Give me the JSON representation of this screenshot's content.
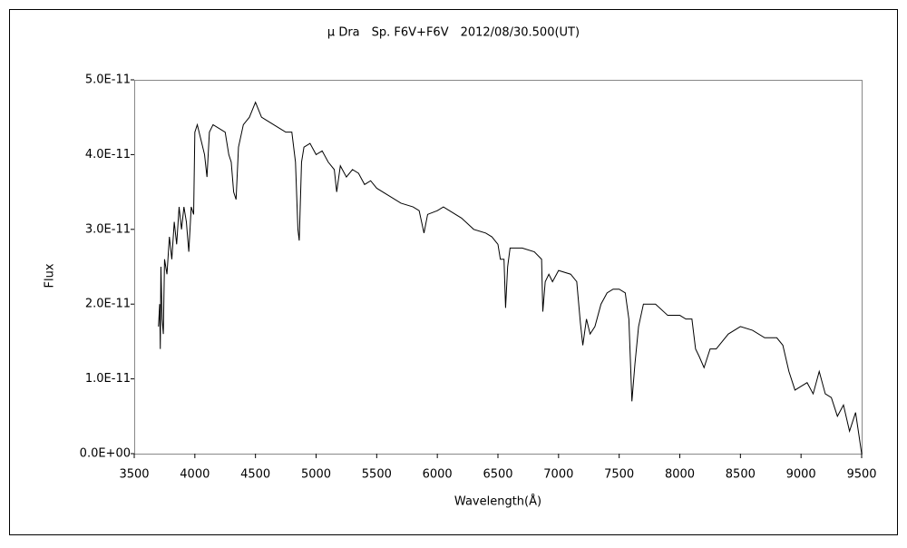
{
  "chart_data": {
    "type": "line",
    "title": "μ Dra　Sp. F6V+F6V　2012/08/30.500(UT)",
    "xlabel": "Wavelength(Å)",
    "ylabel": "Flux",
    "color": "#000000",
    "grid": false,
    "xlim": [
      3500,
      9500
    ],
    "xticks": [
      3500,
      4000,
      4500,
      5000,
      5500,
      6000,
      6500,
      7000,
      7500,
      8000,
      8500,
      9000,
      9500
    ],
    "ylim": [
      0,
      5e-11
    ],
    "yticks": [
      {
        "value": 0,
        "label": "0.0E+00"
      },
      {
        "value": 1e-11,
        "label": "1.0E-11"
      },
      {
        "value": 2e-11,
        "label": "2.0E-11"
      },
      {
        "value": 3e-11,
        "label": "3.0E-11"
      },
      {
        "value": 4e-11,
        "label": "4.0E-11"
      },
      {
        "value": 5e-11,
        "label": "5.0E-11"
      }
    ],
    "x": [
      3700,
      3710,
      3715,
      3720,
      3730,
      3740,
      3750,
      3770,
      3790,
      3810,
      3830,
      3850,
      3870,
      3890,
      3910,
      3930,
      3950,
      3970,
      3990,
      4000,
      4020,
      4050,
      4080,
      4100,
      4120,
      4150,
      4200,
      4250,
      4280,
      4300,
      4320,
      4340,
      4360,
      4400,
      4450,
      4500,
      4550,
      4600,
      4650,
      4700,
      4750,
      4800,
      4830,
      4850,
      4861,
      4880,
      4900,
      4950,
      5000,
      5050,
      5100,
      5150,
      5170,
      5200,
      5250,
      5300,
      5350,
      5400,
      5450,
      5500,
      5600,
      5700,
      5800,
      5850,
      5890,
      5920,
      6000,
      6050,
      6100,
      6200,
      6300,
      6400,
      6450,
      6500,
      6520,
      6550,
      6563,
      6580,
      6600,
      6700,
      6800,
      6860,
      6870,
      6890,
      6920,
      6950,
      7000,
      7100,
      7150,
      7180,
      7200,
      7230,
      7260,
      7300,
      7350,
      7400,
      7450,
      7500,
      7550,
      7580,
      7605,
      7630,
      7660,
      7700,
      7800,
      7900,
      8000,
      8050,
      8100,
      8130,
      8160,
      8200,
      8250,
      8300,
      8400,
      8500,
      8600,
      8700,
      8800,
      8850,
      8900,
      8950,
      9000,
      9050,
      9100,
      9150,
      9200,
      9250,
      9300,
      9350,
      9400,
      9450,
      9500
    ],
    "values": [
      1.7e-11,
      2e-11,
      1.4e-11,
      2.5e-11,
      1.8e-11,
      1.6e-11,
      2.6e-11,
      2.4e-11,
      2.9e-11,
      2.6e-11,
      3.1e-11,
      2.8e-11,
      3.3e-11,
      3e-11,
      3.3e-11,
      3.1e-11,
      2.7e-11,
      3.3e-11,
      3.2e-11,
      4.3e-11,
      4.4e-11,
      4.2e-11,
      4e-11,
      3.7e-11,
      4.3e-11,
      4.4e-11,
      4.35e-11,
      4.3e-11,
      4e-11,
      3.9e-11,
      3.5e-11,
      3.4e-11,
      4.1e-11,
      4.4e-11,
      4.5e-11,
      4.7e-11,
      4.5e-11,
      4.45e-11,
      4.4e-11,
      4.35e-11,
      4.3e-11,
      4.3e-11,
      3.9e-11,
      3e-11,
      2.85e-11,
      3.9e-11,
      4.1e-11,
      4.15e-11,
      4e-11,
      4.05e-11,
      3.9e-11,
      3.8e-11,
      3.5e-11,
      3.85e-11,
      3.7e-11,
      3.8e-11,
      3.75e-11,
      3.6e-11,
      3.65e-11,
      3.55e-11,
      3.45e-11,
      3.35e-11,
      3.3e-11,
      3.25e-11,
      2.95e-11,
      3.2e-11,
      3.25e-11,
      3.3e-11,
      3.25e-11,
      3.15e-11,
      3e-11,
      2.95e-11,
      2.9e-11,
      2.8e-11,
      2.6e-11,
      2.6e-11,
      1.95e-11,
      2.5e-11,
      2.75e-11,
      2.75e-11,
      2.7e-11,
      2.6e-11,
      1.9e-11,
      2.3e-11,
      2.4e-11,
      2.3e-11,
      2.45e-11,
      2.4e-11,
      2.3e-11,
      1.75e-11,
      1.45e-11,
      1.8e-11,
      1.6e-11,
      1.7e-11,
      2e-11,
      2.15e-11,
      2.2e-11,
      2.2e-11,
      2.15e-11,
      1.8e-11,
      7e-12,
      1.2e-11,
      1.7e-11,
      2e-11,
      2e-11,
      1.85e-11,
      1.85e-11,
      1.8e-11,
      1.8e-11,
      1.4e-11,
      1.3e-11,
      1.15e-11,
      1.4e-11,
      1.4e-11,
      1.6e-11,
      1.7e-11,
      1.65e-11,
      1.55e-11,
      1.55e-11,
      1.45e-11,
      1.1e-11,
      8.5e-12,
      9e-12,
      9.5e-12,
      8e-12,
      1.1e-11,
      8e-12,
      7.5e-12,
      5e-12,
      6.5e-12,
      3e-12,
      5.5e-12,
      0
    ]
  }
}
